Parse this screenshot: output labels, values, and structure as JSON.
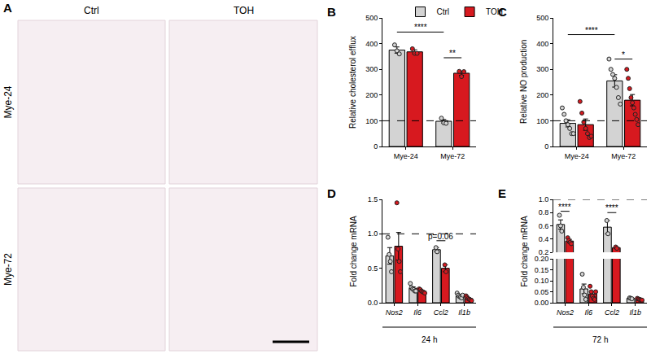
{
  "chart_data": [
    {
      "type": "image",
      "title": "A",
      "columns": [
        "Ctrl",
        "TOH"
      ],
      "rows": [
        "Mye-24",
        "Mye-72"
      ]
    },
    {
      "type": "bar",
      "title": "B",
      "categories": [
        "Mye-24",
        "Mye-72"
      ],
      "ylabel": "Relative cholesterol efflux",
      "ylim": [
        0,
        500
      ],
      "yticks": [
        0,
        100,
        200,
        300,
        400,
        500
      ],
      "baseline": 100,
      "legend": "top",
      "series": [
        {
          "name": "Ctrl",
          "color": "#d3d3d3",
          "marker": "circle",
          "values": [
            375,
            98
          ],
          "errors": [
            12,
            7
          ],
          "points": [
            [
              395,
              372,
              360
            ],
            [
              110,
              92,
              90
            ]
          ]
        },
        {
          "name": "TOH",
          "color": "#d7191f",
          "marker": "circle",
          "values": [
            368,
            285
          ],
          "errors": [
            8,
            8
          ],
          "points": [
            [
              380,
              362,
              362
            ],
            [
              292,
              272,
              291
            ]
          ]
        }
      ],
      "annotations": [
        {
          "text": "****",
          "bars": [
            [
              0,
              0
            ],
            [
              1,
              0
            ]
          ],
          "y": 445
        },
        {
          "text": "**",
          "bars": [
            [
              1,
              0
            ],
            [
              1,
              1
            ]
          ],
          "y": 345
        }
      ]
    },
    {
      "type": "bar",
      "title": "C",
      "categories": [
        "Mye-24",
        "Mye-72"
      ],
      "ylabel": "Relative NO production",
      "ylim": [
        0,
        500
      ],
      "yticks": [
        0,
        100,
        200,
        300,
        400,
        500
      ],
      "baseline": 100,
      "series": [
        {
          "name": "Ctrl",
          "color": "#d3d3d3",
          "marker": "circle",
          "values": [
            90,
            255
          ],
          "errors": [
            14,
            24
          ],
          "points": [
            [
              150,
              125,
              100,
              85,
              70,
              50,
              50
            ],
            [
              340,
              300,
              280,
              265,
              230,
              190,
              165
            ]
          ]
        },
        {
          "name": "TOH",
          "color": "#d7191f",
          "marker": "circle",
          "values": [
            85,
            180
          ],
          "errors": [
            22,
            22
          ],
          "points": [
            [
              175,
              130,
              95,
              70,
              50,
              35,
              40
            ],
            [
              300,
              265,
              225,
              190,
              170,
              150,
              125,
              105,
              85
            ]
          ]
        }
      ],
      "annotations": [
        {
          "text": "****",
          "bars": [
            [
              0,
              0
            ],
            [
              1,
              0
            ]
          ],
          "y": 435
        },
        {
          "text": "*",
          "bars": [
            [
              1,
              0
            ],
            [
              1,
              1
            ]
          ],
          "y": 340
        }
      ]
    },
    {
      "type": "bar",
      "title": "D",
      "categories": [
        "Nos2",
        "Il6",
        "Ccl2",
        "Il1b"
      ],
      "ylabel": "Fold change mRNA",
      "xlabel": "24 h",
      "ylim": [
        0,
        1.5
      ],
      "yticks": [
        {
          "value": 0,
          "label": "0.0"
        },
        0.5,
        {
          "value": 1,
          "label": "1.0"
        },
        1.5
      ],
      "baseline": 1,
      "series": [
        {
          "name": "Ctrl",
          "color": "#d3d3d3",
          "marker": "circle",
          "values": [
            0.68,
            0.21,
            0.77,
            0.1
          ],
          "errors": [
            0.12,
            0.02,
            0.03,
            0.015
          ],
          "points": [
            [
              0.95,
              0.7,
              0.6,
              0.45
            ],
            [
              0.28,
              0.22,
              0.2,
              0.19,
              0.17,
              0.17
            ],
            [
              0.8,
              0.74
            ],
            [
              0.14,
              0.11,
              0.09,
              0.08,
              0.07,
              0.11
            ]
          ]
        },
        {
          "name": "TOH",
          "color": "#d7191f",
          "marker": "circle",
          "values": [
            0.82,
            0.17,
            0.5,
            0.06
          ],
          "errors": [
            0.2,
            0.01,
            0.05,
            0.01
          ],
          "points": [
            [
              1.45,
              0.78,
              0.6,
              0.45
            ],
            [
              0.2,
              0.19,
              0.17,
              0.16,
              0.15,
              0.14
            ],
            [
              0.55,
              0.45
            ],
            [
              0.1,
              0.08,
              0.06,
              0.05,
              0.04,
              0.03
            ]
          ]
        }
      ],
      "annotations": [
        {
          "text": "p=0.06",
          "bars": [
            [
              2,
              0
            ],
            [
              2,
              1
            ]
          ],
          "y": 0.9
        }
      ]
    },
    {
      "type": "bar",
      "title": "E",
      "categories": [
        "Nos2",
        "Il6",
        "Ccl2",
        "Il1b"
      ],
      "ylabel": "Fold change mRNA",
      "xlabel": "72 h",
      "ylim": [
        [
          0,
          0.2
        ],
        [
          0.2,
          1
        ]
      ],
      "yticks": [
        [
          {
            "value": 0,
            "label": "0.00"
          },
          {
            "value": 0.05,
            "label": "0.05"
          },
          {
            "value": 0.1,
            "label": "0.10"
          },
          {
            "value": 0.15,
            "label": "0.15"
          },
          {
            "value": 0.2,
            "label": "0.20"
          }
        ],
        [
          0.2,
          0.4,
          0.6,
          0.8,
          {
            "value": 1,
            "label": "1.0"
          }
        ]
      ],
      "baseline": 1,
      "series": [
        {
          "name": "Ctrl",
          "color": "#d3d3d3",
          "marker": "circle",
          "values": [
            0.62,
            0.063,
            0.58,
            0.02
          ],
          "errors": [
            0.07,
            0.022,
            0.1,
            0.002
          ],
          "points": [
            [
              0.76,
              0.6,
              0.52
            ],
            [
              0.13,
              0.07,
              0.035,
              0.015
            ],
            [
              0.68,
              0.48
            ],
            [
              0.022,
              0.02,
              0.018
            ]
          ]
        },
        {
          "name": "TOH",
          "color": "#d7191f",
          "marker": "circle",
          "values": [
            0.37,
            0.04,
            0.27,
            0.015
          ],
          "errors": [
            0.025,
            0.012,
            0.01,
            0.002
          ],
          "points": [
            [
              0.42,
              0.38,
              0.35,
              0.33
            ],
            [
              0.075,
              0.05,
              0.03,
              0.02,
              0.015,
              0.05
            ],
            [
              0.28,
              0.26
            ],
            [
              0.02,
              0.017,
              0.015,
              0.013,
              0.012
            ]
          ]
        }
      ],
      "annotations": [
        {
          "text": "****",
          "bars": [
            [
              0,
              0
            ],
            [
              0,
              1
            ]
          ],
          "y": 0.82
        },
        {
          "text": "****",
          "bars": [
            [
              2,
              0
            ],
            [
              2,
              1
            ]
          ],
          "y": 0.8
        }
      ]
    }
  ]
}
